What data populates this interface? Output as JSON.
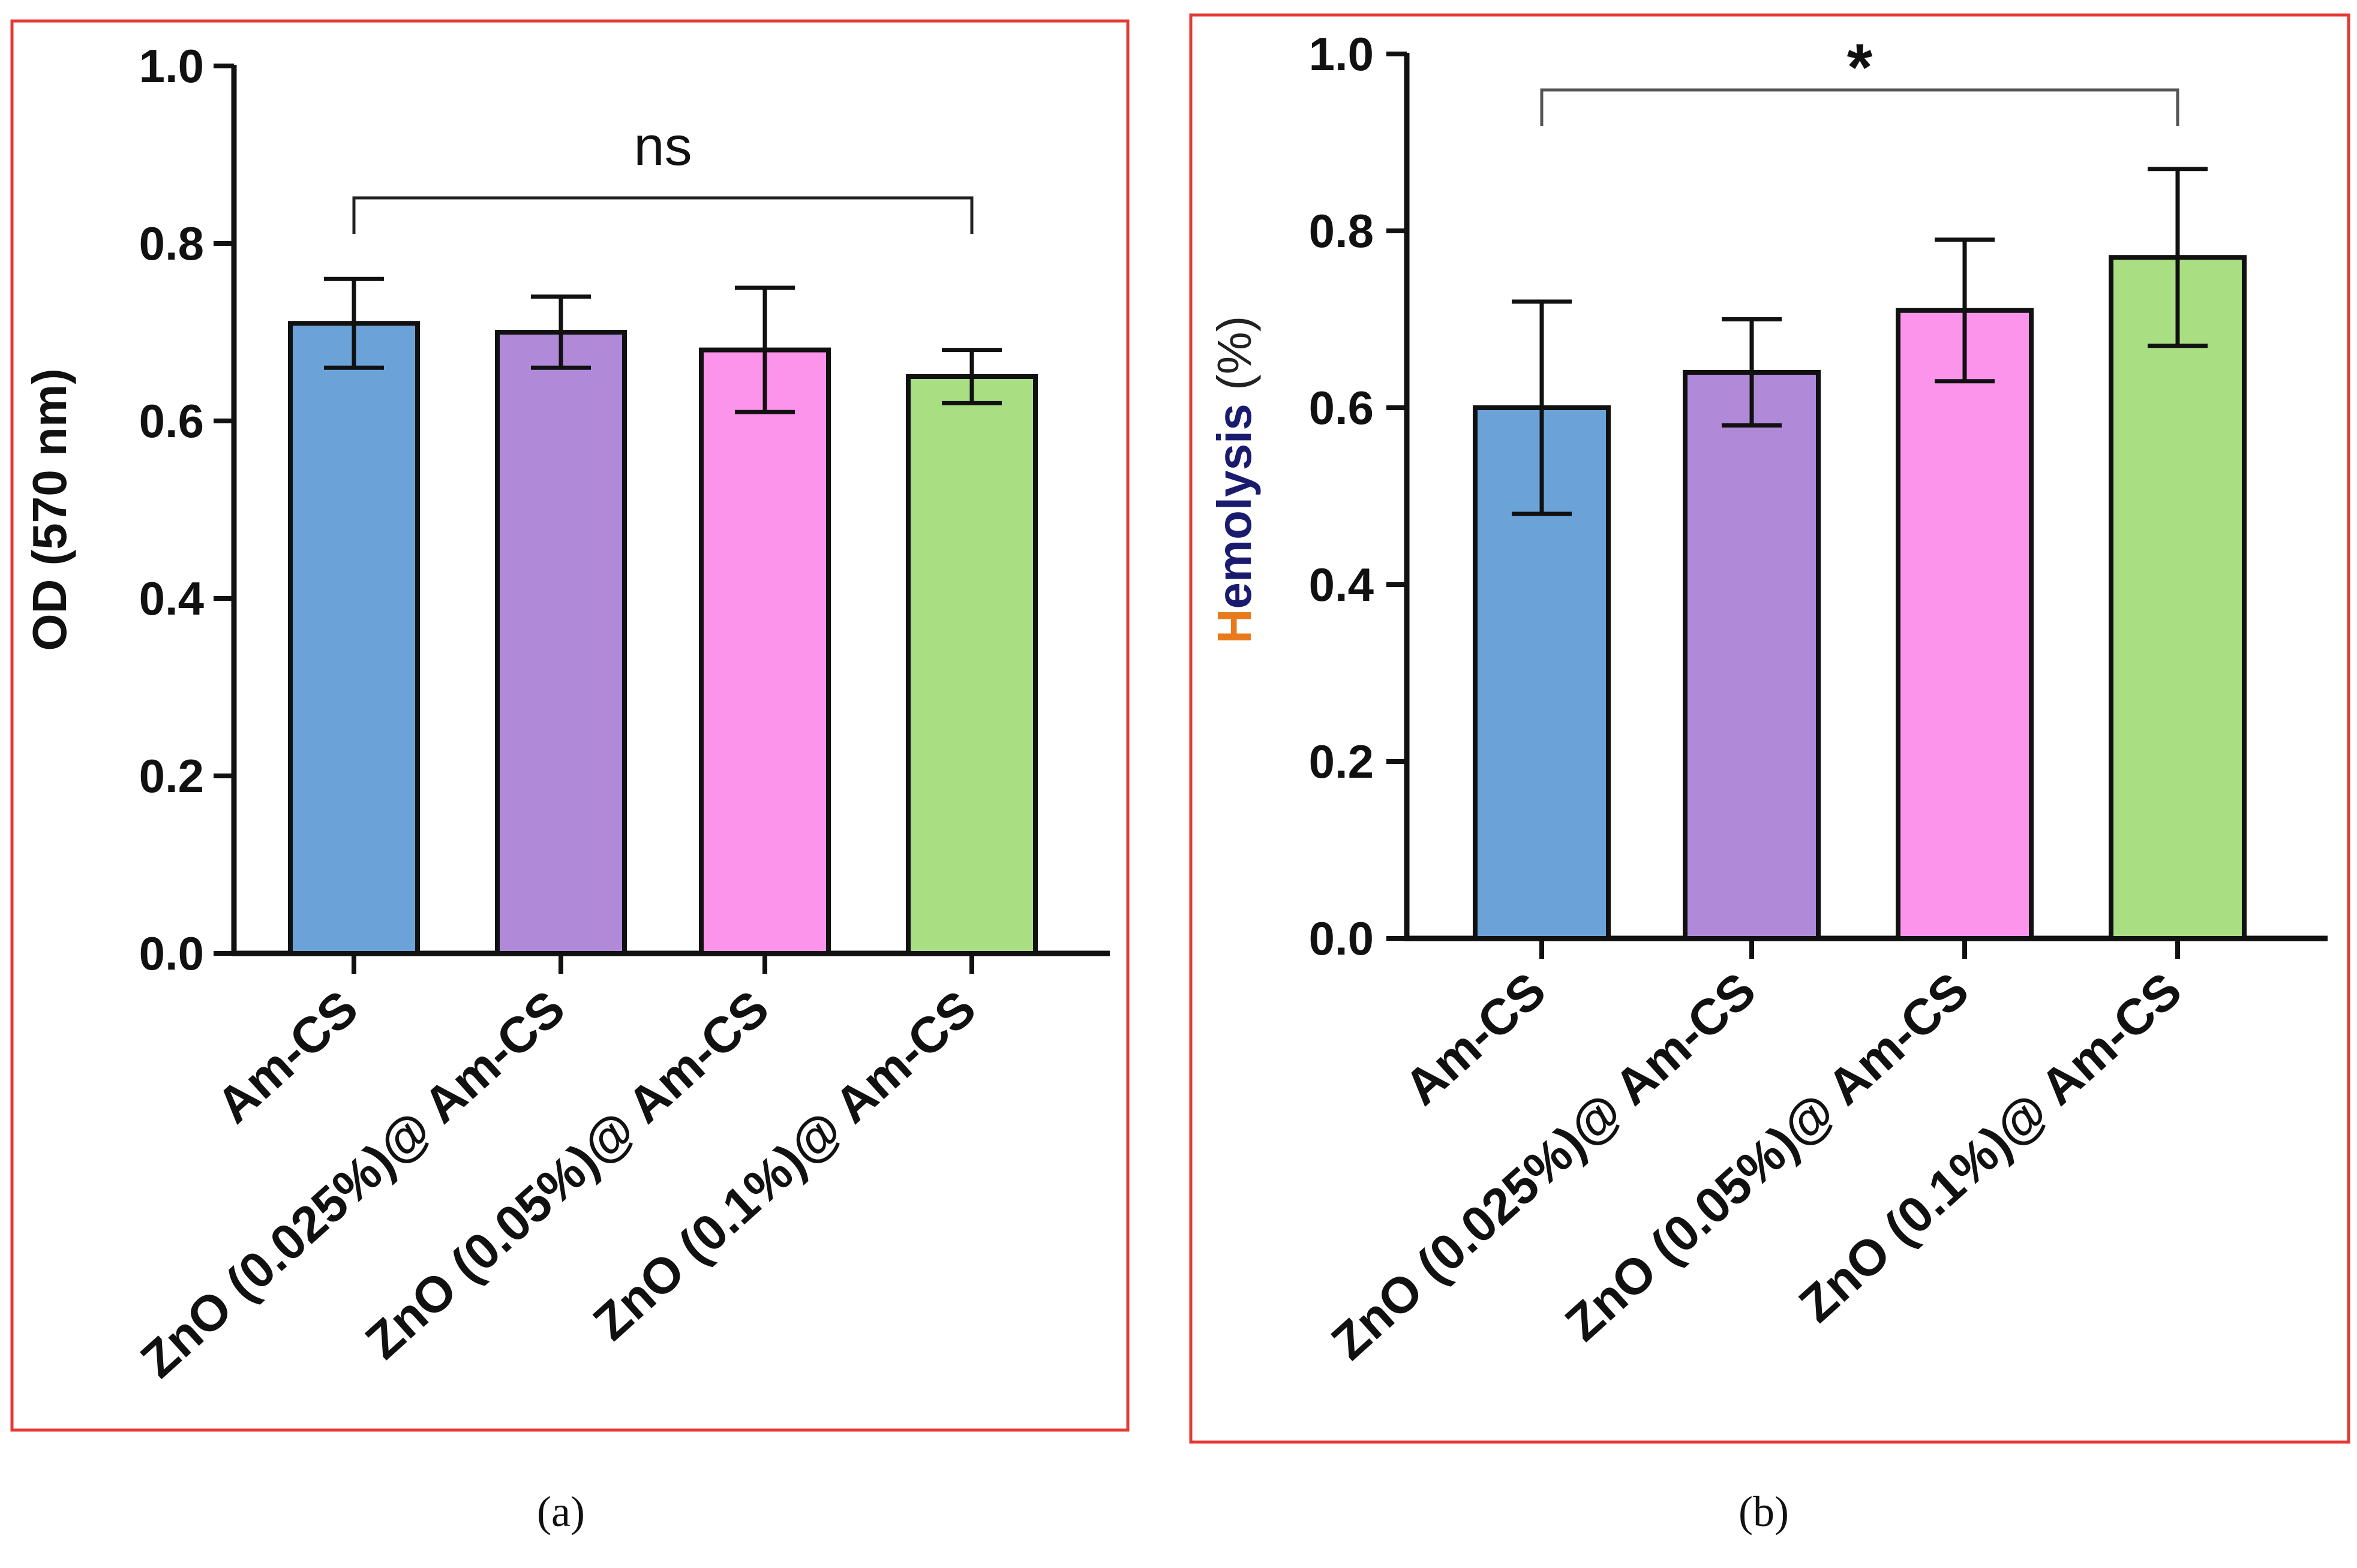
{
  "colors": {
    "frame": "#e53935",
    "axis": "#111111",
    "bars": [
      "#6ba3d9",
      "#b08ad8",
      "#fd94ec",
      "#aade83"
    ],
    "ylabel_b_main": "#1a1a6e",
    "ylabel_b_prefix": "#e87a1c"
  },
  "chart_data": [
    {
      "panel": "a",
      "type": "bar",
      "caption": "(a)",
      "ylabel": "OD (570 nm)",
      "xlabel": "",
      "ylim": [
        0,
        1.0
      ],
      "yticks": [
        0.0,
        0.2,
        0.4,
        0.6,
        0.8,
        1.0
      ],
      "ytick_labels": [
        "0.0",
        "0.2",
        "0.4",
        "0.6",
        "0.8",
        "1.0"
      ],
      "categories": [
        "Am-CS",
        "ZnO (0.025%)@ Am-CS",
        "ZnO (0.05%)@ Am-CS",
        "ZnO (0.1%)@ Am-CS"
      ],
      "values": [
        0.71,
        0.7,
        0.68,
        0.65
      ],
      "errors": [
        0.05,
        0.04,
        0.07,
        0.03
      ],
      "significance": {
        "label": "ns",
        "from": 0,
        "to": 3,
        "y": 0.85
      }
    },
    {
      "panel": "b",
      "type": "bar",
      "caption": "(b)",
      "ylabel": "Hemolysis (%)",
      "ylabel_parts": [
        "H",
        "emolysis",
        " (%)"
      ],
      "xlabel": "",
      "ylim": [
        0,
        1.0
      ],
      "yticks": [
        0.0,
        0.2,
        0.4,
        0.6,
        0.8,
        1.0
      ],
      "ytick_labels": [
        "0.0",
        "0.2",
        "0.4",
        "0.6",
        "0.8",
        "1.0"
      ],
      "categories": [
        "Am-CS",
        "ZnO (0.025%)@ Am-CS",
        "ZnO (0.05%)@ Am-CS",
        "ZnO (0.1%)@ Am-CS"
      ],
      "values": [
        0.6,
        0.64,
        0.71,
        0.77
      ],
      "errors": [
        0.12,
        0.06,
        0.08,
        0.1
      ],
      "significance": {
        "label": "*",
        "from": 0,
        "to": 3,
        "y": 0.96
      }
    }
  ]
}
